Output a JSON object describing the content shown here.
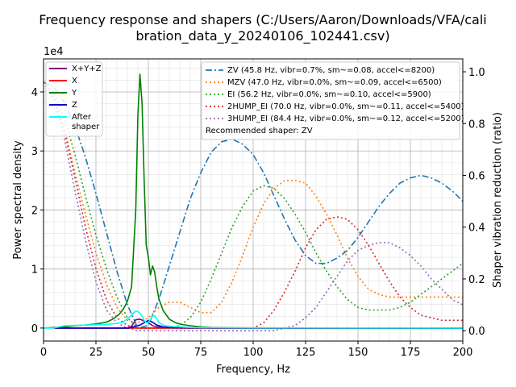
{
  "chart_data": {
    "type": "line",
    "title_lines": [
      "Frequency response and shapers (C:/Users/Aaron/Downloads/VFA/cali",
      "bration_data_y_20240106_102441.csv)"
    ],
    "xlabel": "Frequency, Hz",
    "ylabel": "Power spectral density",
    "y2label": "Shaper vibration reduction (ratio)",
    "y_offset_text": "1e4",
    "xlim": [
      0,
      200
    ],
    "ylim": [
      -2200,
      45600
    ],
    "y2lim": [
      -0.04,
      1.05
    ],
    "x_ticks": [
      0,
      25,
      50,
      75,
      100,
      125,
      150,
      175,
      200
    ],
    "y_ticks": [
      0,
      10000,
      20000,
      30000,
      40000
    ],
    "y_tick_labels": [
      "0",
      "1",
      "2",
      "3",
      "4"
    ],
    "y2_ticks": [
      0.0,
      0.2,
      0.4,
      0.6,
      0.8,
      1.0
    ],
    "y2_tick_labels": [
      "0.0",
      "0.2",
      "0.4",
      "0.6",
      "0.8",
      "1.0"
    ],
    "grid": true,
    "minor_grid": true,
    "legend_left_position": "top-left",
    "legend_right_position": "top-right",
    "recommended_shaper_text": "Recommended shaper: ZV",
    "psd_series": [
      {
        "name": "X+Y+Z",
        "color": "#800080",
        "style": "solid",
        "x": [
          5,
          20,
          30,
          35,
          38,
          40,
          42,
          44,
          46,
          48,
          50,
          52,
          54,
          57,
          60,
          65,
          70,
          80,
          100,
          150,
          200
        ],
        "y": [
          0,
          0,
          0,
          0,
          0,
          0,
          300,
          1400,
          1500,
          1200,
          900,
          400,
          200,
          100,
          50,
          20,
          10,
          5,
          0,
          0,
          0
        ]
      },
      {
        "name": "X",
        "color": "#ff0000",
        "style": "solid",
        "x": [
          5,
          20,
          30,
          35,
          38,
          40,
          42,
          44,
          46,
          48,
          50,
          52,
          54,
          57,
          60,
          65,
          70,
          80,
          100,
          150,
          200
        ],
        "y": [
          0,
          0,
          0,
          0,
          0,
          0,
          0,
          0,
          0,
          0,
          0,
          0,
          0,
          0,
          0,
          0,
          0,
          0,
          0,
          0,
          0
        ]
      },
      {
        "name": "Y",
        "color": "#008000",
        "style": "solid",
        "x": [
          0,
          5,
          10,
          15,
          20,
          25,
          30,
          33,
          36,
          38,
          40,
          42,
          44,
          45,
          46,
          47,
          48,
          49,
          50,
          51,
          52,
          53,
          54,
          55,
          57,
          60,
          63,
          66,
          70,
          75,
          80,
          90,
          100,
          150,
          200
        ],
        "y": [
          0,
          100,
          200,
          400,
          500,
          700,
          1000,
          1500,
          2300,
          3200,
          4500,
          7000,
          20000,
          36000,
          43000,
          38000,
          25000,
          14000,
          12000,
          9000,
          10500,
          9500,
          7000,
          5000,
          3000,
          1500,
          900,
          600,
          400,
          200,
          100,
          50,
          30,
          10,
          0
        ]
      },
      {
        "name": "Z",
        "color": "#0000cd",
        "style": "solid",
        "x": [
          5,
          20,
          30,
          35,
          40,
          42,
          44,
          46,
          48,
          50,
          52,
          54,
          57,
          60,
          70,
          100,
          200
        ],
        "y": [
          0,
          0,
          0,
          0,
          0,
          100,
          300,
          500,
          900,
          1300,
          1000,
          500,
          200,
          80,
          20,
          0,
          0
        ]
      },
      {
        "name": "After\nshaper",
        "color": "#00ffff",
        "style": "solid",
        "x": [
          0,
          5,
          10,
          20,
          30,
          35,
          38,
          40,
          42,
          43,
          44,
          45,
          46,
          47,
          48,
          49,
          50,
          51,
          52,
          53,
          54,
          55,
          57,
          60,
          65,
          70,
          80,
          100,
          150,
          200
        ],
        "y": [
          0,
          0,
          400,
          500,
          600,
          800,
          1000,
          1600,
          2200,
          2600,
          2900,
          2800,
          2500,
          2000,
          1300,
          900,
          1000,
          1500,
          2000,
          2100,
          1600,
          1000,
          500,
          300,
          200,
          100,
          50,
          30,
          10,
          0
        ]
      }
    ],
    "shaper_series": [
      {
        "name": "ZV (45.8 Hz, vibr=0.7%, sm~=0.08, accel<=8200)",
        "color": "#1f77b4",
        "style": "dashdot",
        "x": [
          0,
          5,
          10,
          15,
          20,
          25,
          30,
          35,
          40,
          45,
          50,
          55,
          60,
          65,
          70,
          75,
          80,
          85,
          90,
          95,
          100,
          105,
          110,
          115,
          120,
          125,
          130,
          135,
          140,
          145,
          150,
          155,
          160,
          165,
          170,
          175,
          180,
          185,
          190,
          195,
          200
        ],
        "y": [
          0.96,
          0.94,
          0.88,
          0.79,
          0.67,
          0.53,
          0.38,
          0.23,
          0.1,
          0.01,
          0.02,
          0.12,
          0.25,
          0.38,
          0.51,
          0.61,
          0.69,
          0.73,
          0.74,
          0.72,
          0.68,
          0.61,
          0.52,
          0.43,
          0.35,
          0.29,
          0.26,
          0.26,
          0.28,
          0.31,
          0.36,
          0.42,
          0.48,
          0.53,
          0.57,
          0.59,
          0.6,
          0.59,
          0.57,
          0.54,
          0.5
        ]
      },
      {
        "name": "MZV (47.0 Hz, vibr=0.0%, sm~=0.09, accel<=6500)",
        "color": "#ff7f0e",
        "style": "dotted",
        "x": [
          0,
          5,
          10,
          15,
          20,
          25,
          30,
          35,
          40,
          45,
          50,
          55,
          60,
          65,
          70,
          75,
          80,
          85,
          90,
          95,
          100,
          105,
          110,
          115,
          120,
          125,
          130,
          135,
          140,
          145,
          150,
          155,
          160,
          165,
          170,
          175,
          180,
          185,
          190,
          195,
          200
        ],
        "y": [
          0.96,
          0.9,
          0.78,
          0.61,
          0.45,
          0.3,
          0.18,
          0.09,
          0.04,
          0.03,
          0.05,
          0.09,
          0.11,
          0.11,
          0.09,
          0.07,
          0.07,
          0.11,
          0.19,
          0.29,
          0.4,
          0.49,
          0.55,
          0.58,
          0.58,
          0.57,
          0.52,
          0.45,
          0.37,
          0.28,
          0.21,
          0.16,
          0.14,
          0.13,
          0.13,
          0.13,
          0.13,
          0.13,
          0.13,
          0.13,
          0.13
        ]
      },
      {
        "name": "EI (56.2 Hz, vibr=0.0%, sm~=0.10, accel<=5900)",
        "color": "#2ca02c",
        "style": "dotted",
        "x": [
          0,
          5,
          10,
          15,
          20,
          25,
          30,
          35,
          40,
          45,
          50,
          55,
          60,
          65,
          70,
          75,
          80,
          85,
          90,
          95,
          100,
          105,
          110,
          115,
          120,
          125,
          130,
          135,
          140,
          145,
          150,
          155,
          160,
          165,
          170,
          175,
          180,
          185,
          190,
          195,
          200
        ],
        "y": [
          0.96,
          0.92,
          0.82,
          0.68,
          0.52,
          0.37,
          0.24,
          0.13,
          0.05,
          0.01,
          0.01,
          0.01,
          0.01,
          0.02,
          0.05,
          0.11,
          0.2,
          0.3,
          0.4,
          0.48,
          0.54,
          0.56,
          0.55,
          0.51,
          0.45,
          0.38,
          0.3,
          0.23,
          0.17,
          0.12,
          0.09,
          0.08,
          0.08,
          0.08,
          0.09,
          0.11,
          0.14,
          0.17,
          0.2,
          0.23,
          0.26
        ]
      },
      {
        "name": "2HUMP_EI (70.0 Hz, vibr=0.0%, sm~=0.11, accel<=5400)",
        "color": "#d62728",
        "style": "dotted",
        "x": [
          0,
          5,
          10,
          15,
          20,
          25,
          30,
          35,
          40,
          45,
          50,
          55,
          60,
          65,
          70,
          75,
          80,
          85,
          90,
          95,
          100,
          105,
          110,
          115,
          120,
          125,
          130,
          135,
          140,
          145,
          150,
          155,
          160,
          165,
          170,
          175,
          180,
          185,
          190,
          195,
          200
        ],
        "y": [
          0.96,
          0.9,
          0.77,
          0.59,
          0.4,
          0.24,
          0.12,
          0.05,
          0.02,
          0.01,
          0.01,
          0.01,
          0.01,
          0.01,
          0.01,
          0.01,
          0.01,
          0.01,
          0.01,
          0.01,
          0.01,
          0.03,
          0.08,
          0.15,
          0.23,
          0.32,
          0.39,
          0.43,
          0.44,
          0.43,
          0.39,
          0.33,
          0.26,
          0.19,
          0.13,
          0.09,
          0.06,
          0.05,
          0.04,
          0.04,
          0.04
        ]
      },
      {
        "name": "3HUMP_EI (84.4 Hz, vibr=0.0%, sm~=0.12, accel<=5200)",
        "color": "#9467bd",
        "style": "dotted",
        "x": [
          0,
          5,
          10,
          15,
          20,
          25,
          30,
          35,
          40,
          45,
          50,
          55,
          60,
          65,
          70,
          75,
          80,
          85,
          90,
          95,
          100,
          105,
          110,
          115,
          120,
          125,
          130,
          135,
          140,
          145,
          150,
          155,
          160,
          165,
          170,
          175,
          180,
          185,
          190,
          195,
          200
        ],
        "y": [
          0.96,
          0.89,
          0.74,
          0.54,
          0.35,
          0.19,
          0.08,
          0.03,
          0.01,
          0.0,
          0.0,
          0.0,
          0.0,
          0.0,
          0.0,
          0.0,
          0.0,
          0.0,
          0.0,
          0.0,
          0.0,
          0.0,
          0.0,
          0.01,
          0.02,
          0.05,
          0.09,
          0.15,
          0.21,
          0.27,
          0.31,
          0.33,
          0.34,
          0.34,
          0.32,
          0.29,
          0.25,
          0.2,
          0.16,
          0.12,
          0.1
        ]
      }
    ]
  }
}
